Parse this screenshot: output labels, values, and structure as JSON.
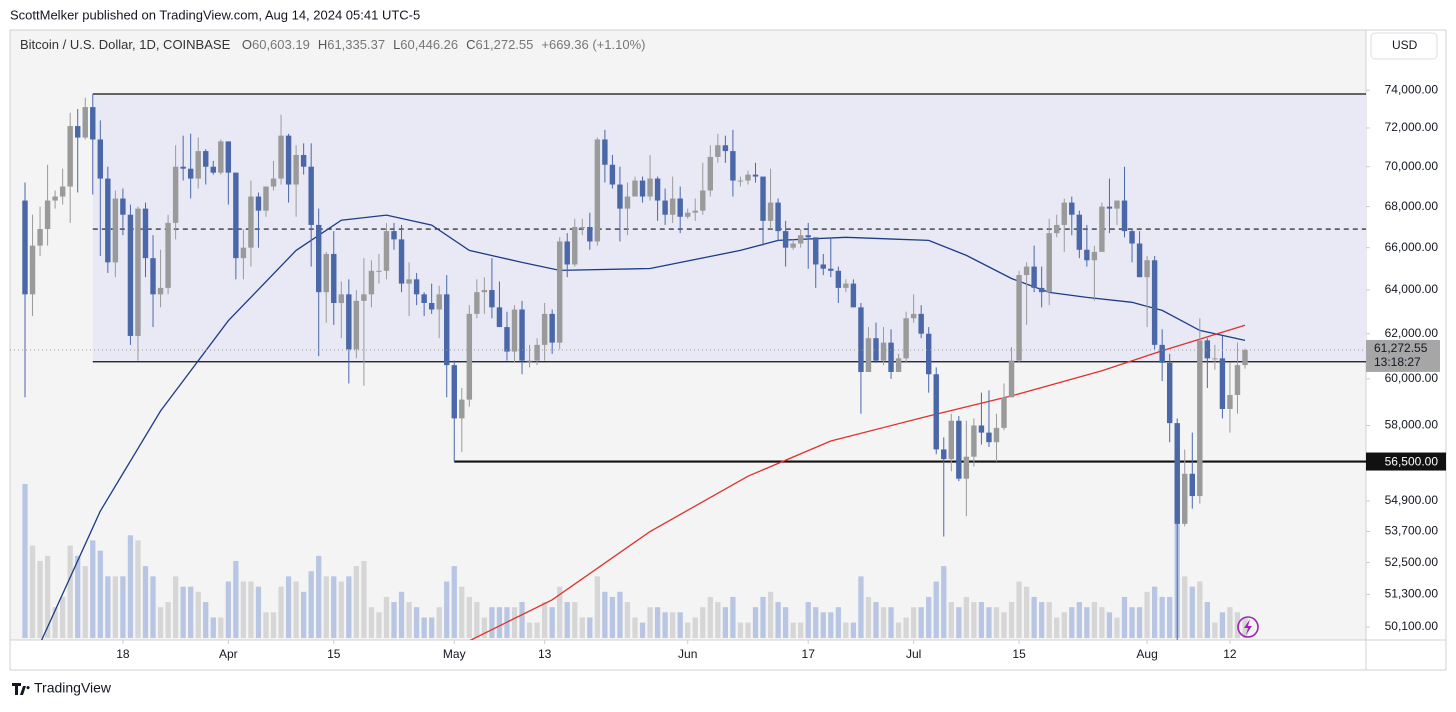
{
  "chart_data": {
    "type": "candlestick",
    "byline": "ScottMelker published on TradingView.com, Aug 14, 2024 05:41 UTC-5",
    "symbol": "Bitcoin / U.S. Dollar, 1D, COINBASE",
    "ohlc_legend": [
      {
        "key": "O",
        "label": "60,603.19"
      },
      {
        "key": "H",
        "label": "61,335.37"
      },
      {
        "key": "L",
        "label": "60,446.26"
      },
      {
        "key": "C",
        "label": "61,272.55"
      }
    ],
    "change_label": "+669.36 (+1.10%)",
    "currency": "USD",
    "last_price_label": "61,272.55",
    "countdown": "13:18:27",
    "footer": "TradingView",
    "log_scale": true,
    "ylim": [
      49700,
      77200
    ],
    "yticks": [
      {
        "value": 74000,
        "label": "74,000.00"
      },
      {
        "value": 72000,
        "label": "72,000.00"
      },
      {
        "value": 70000,
        "label": "70,000.00"
      },
      {
        "value": 68000,
        "label": "68,000.00"
      },
      {
        "value": 66000,
        "label": "66,000.00"
      },
      {
        "value": 64000,
        "label": "64,000.00"
      },
      {
        "value": 62000,
        "label": "62,000.00"
      },
      {
        "value": 60000,
        "label": "60,000.00"
      },
      {
        "value": 58000,
        "label": "58,000.00"
      },
      {
        "value": 54900,
        "label": "54,900.00"
      },
      {
        "value": 53700,
        "label": "53,700.00"
      },
      {
        "value": 52500,
        "label": "52,500.00"
      },
      {
        "value": 51300,
        "label": "51,300.00"
      },
      {
        "value": 50100,
        "label": "50,100.00"
      }
    ],
    "xticks": [
      {
        "value": "Mar 18",
        "label": "18"
      },
      {
        "value": "Apr 1",
        "label": "Apr"
      },
      {
        "value": "Apr 15",
        "label": "15"
      },
      {
        "value": "May 1",
        "label": "May"
      },
      {
        "value": "May 13",
        "label": "13"
      },
      {
        "value": "Jun 1",
        "label": "Jun"
      },
      {
        "value": "Jun 17",
        "label": "17"
      },
      {
        "value": "Jul 1",
        "label": "Jul"
      },
      {
        "value": "Jul 15",
        "label": "15"
      },
      {
        "value": "Aug 1",
        "label": "Aug"
      },
      {
        "value": "Aug 12",
        "label": "12"
      }
    ],
    "colors": {
      "up": "#9a9a9a",
      "down": "#4a68a8",
      "volume_up": "#d6d6d6",
      "volume_down": "#b8c6e3"
    },
    "x": [
      "Mar 5",
      "Mar 6",
      "Mar 7",
      "Mar 8",
      "Mar 9",
      "Mar 10",
      "Mar 11",
      "Mar 12",
      "Mar 13",
      "Mar 14",
      "Mar 15",
      "Mar 16",
      "Mar 17",
      "Mar 18",
      "Mar 19",
      "Mar 20",
      "Mar 21",
      "Mar 22",
      "Mar 23",
      "Mar 24",
      "Mar 25",
      "Mar 26",
      "Mar 27",
      "Mar 28",
      "Mar 29",
      "Mar 30",
      "Mar 31",
      "Apr 1",
      "Apr 2",
      "Apr 3",
      "Apr 4",
      "Apr 5",
      "Apr 6",
      "Apr 7",
      "Apr 8",
      "Apr 9",
      "Apr 10",
      "Apr 11",
      "Apr 12",
      "Apr 13",
      "Apr 14",
      "Apr 15",
      "Apr 16",
      "Apr 17",
      "Apr 18",
      "Apr 19",
      "Apr 20",
      "Apr 21",
      "Apr 22",
      "Apr 23",
      "Apr 24",
      "Apr 25",
      "Apr 26",
      "Apr 27",
      "Apr 28",
      "Apr 29",
      "Apr 30",
      "May 1",
      "May 2",
      "May 3",
      "May 4",
      "May 5",
      "May 6",
      "May 7",
      "May 8",
      "May 9",
      "May 10",
      "May 11",
      "May 12",
      "May 13",
      "May 14",
      "May 15",
      "May 16",
      "May 17",
      "May 18",
      "May 19",
      "May 20",
      "May 21",
      "May 22",
      "May 23",
      "May 24",
      "May 25",
      "May 26",
      "May 27",
      "May 28",
      "May 29",
      "May 30",
      "May 31",
      "Jun 1",
      "Jun 2",
      "Jun 3",
      "Jun 4",
      "Jun 5",
      "Jun 6",
      "Jun 7",
      "Jun 8",
      "Jun 9",
      "Jun 10",
      "Jun 11",
      "Jun 12",
      "Jun 13",
      "Jun 14",
      "Jun 15",
      "Jun 16",
      "Jun 17",
      "Jun 18",
      "Jun 19",
      "Jun 20",
      "Jun 21",
      "Jun 22",
      "Jun 23",
      "Jun 24",
      "Jun 25",
      "Jun 26",
      "Jun 27",
      "Jun 28",
      "Jun 29",
      "Jun 30",
      "Jul 1",
      "Jul 2",
      "Jul 3",
      "Jul 4",
      "Jul 5",
      "Jul 6",
      "Jul 7",
      "Jul 8",
      "Jul 9",
      "Jul 10",
      "Jul 11",
      "Jul 12",
      "Jul 13",
      "Jul 14",
      "Jul 15",
      "Jul 16",
      "Jul 17",
      "Jul 18",
      "Jul 19",
      "Jul 20",
      "Jul 21",
      "Jul 22",
      "Jul 23",
      "Jul 24",
      "Jul 25",
      "Jul 26",
      "Jul 27",
      "Jul 28",
      "Jul 29",
      "Jul 30",
      "Jul 31",
      "Aug 1",
      "Aug 2",
      "Aug 3",
      "Aug 4",
      "Aug 5",
      "Aug 6",
      "Aug 7",
      "Aug 8",
      "Aug 9",
      "Aug 10",
      "Aug 11",
      "Aug 12",
      "Aug 13",
      "Aug 14"
    ],
    "open": [
      68300,
      63800,
      66100,
      66900,
      68300,
      68500,
      69000,
      72100,
      71500,
      73100,
      71400,
      69400,
      65300,
      68400,
      67600,
      61900,
      67900,
      65500,
      63800,
      64100,
      67200,
      70000,
      69900,
      69400,
      70800,
      70000,
      69700,
      71300,
      69700,
      65500,
      66000,
      68500,
      67800,
      69000,
      69400,
      71600,
      69100,
      70600,
      70000,
      67100,
      63900,
      65700,
      63400,
      63800,
      61300,
      63500,
      63800,
      64900,
      64900,
      66800,
      66400,
      64300,
      64500,
      63800,
      63400,
      63100,
      63800,
      60600,
      58300,
      59100,
      62900,
      63900,
      64000,
      63200,
      62300,
      61200,
      63100,
      60800,
      60800,
      61500,
      62900,
      61600,
      66300,
      65200,
      67000,
      67000,
      66300,
      71400,
      70100,
      69100,
      67900,
      68500,
      69300,
      68500,
      69400,
      68300,
      67600,
      68400,
      67500,
      67700,
      67800,
      68800,
      70500,
      71100,
      70800,
      69300,
      69300,
      69600,
      69500,
      67300,
      68200,
      66800,
      66000,
      66200,
      66600,
      66500,
      65200,
      65000,
      64900,
      64100,
      64300,
      63200,
      60300,
      61800,
      60800,
      61600,
      60300,
      60900,
      62700,
      62900,
      62000,
      60200,
      57000,
      56600,
      58200,
      55800,
      56700,
      58000,
      57700,
      57300,
      57900,
      59200,
      60800,
      64700,
      65100,
      64100,
      63900,
      66700,
      67100,
      68200,
      67600,
      65900,
      65400,
      65800,
      68000,
      67900,
      68300,
      66800,
      66200,
      64600,
      65400,
      61500,
      60700,
      58100,
      54000,
      56000,
      55100,
      61700,
      60900,
      60900,
      58700,
      59300,
      60603.19
    ],
    "high": [
      69200,
      67600,
      68000,
      70100,
      68800,
      69900,
      72800,
      73000,
      73600,
      73800,
      72400,
      70000,
      68800,
      68900,
      68100,
      68000,
      68200,
      66600,
      65900,
      67600,
      71100,
      71600,
      71700,
      71500,
      70900,
      70300,
      71400,
      71300,
      69700,
      66900,
      69300,
      68700,
      69000,
      70300,
      72700,
      71700,
      71100,
      71200,
      71200,
      67900,
      65800,
      66800,
      64400,
      64500,
      64000,
      65500,
      65400,
      65700,
      67200,
      67200,
      67100,
      65300,
      64800,
      63900,
      64300,
      64200,
      64700,
      60800,
      59600,
      63300,
      64500,
      64600,
      65500,
      64400,
      63000,
      63300,
      63500,
      61500,
      61800,
      63400,
      63100,
      66500,
      66700,
      67400,
      67400,
      67700,
      71500,
      71900,
      70600,
      70000,
      69200,
      69500,
      69500,
      70600,
      69500,
      68900,
      69500,
      69000,
      67900,
      68400,
      70200,
      71100,
      71700,
      71600,
      71900,
      69500,
      69800,
      70200,
      69500,
      69900,
      68400,
      67300,
      66400,
      66900,
      67200,
      66500,
      65700,
      66500,
      65100,
      64500,
      64500,
      63400,
      62300,
      62500,
      62300,
      62200,
      61100,
      63000,
      63800,
      63300,
      62300,
      60500,
      57500,
      58500,
      58400,
      58200,
      58300,
      59400,
      59500,
      58500,
      59800,
      61400,
      64900,
      65300,
      66100,
      65100,
      67400,
      67600,
      68400,
      68500,
      67800,
      67100,
      66100,
      68200,
      69400,
      68300,
      70000,
      66900,
      66800,
      65600,
      65600,
      62200,
      61100,
      58300,
      57000,
      57700,
      62700,
      61800,
      61500,
      61900,
      60700,
      61600,
      61335.37
    ],
    "low": [
      59200,
      62800,
      65600,
      66100,
      67900,
      68100,
      67200,
      68700,
      71400,
      68600,
      65600,
      64800,
      64600,
      66600,
      61500,
      60800,
      64600,
      62300,
      63200,
      63800,
      66400,
      69300,
      68400,
      68900,
      69100,
      69600,
      69600,
      68100,
      64500,
      64500,
      65100,
      66000,
      67500,
      68800,
      69100,
      68200,
      67500,
      69600,
      65100,
      61000,
      62500,
      62400,
      61800,
      59800,
      60900,
      59700,
      63200,
      64300,
      64500,
      65900,
      63900,
      62800,
      63300,
      62800,
      62900,
      61800,
      59200,
      56500,
      56900,
      58800,
      62700,
      62900,
      62700,
      62300,
      60800,
      60700,
      60200,
      60500,
      60600,
      60800,
      61100,
      61300,
      64600,
      65100,
      66600,
      65900,
      66100,
      69200,
      68900,
      66300,
      66600,
      68500,
      68200,
      68300,
      67300,
      67100,
      67200,
      66700,
      67400,
      67300,
      67600,
      68500,
      70200,
      70200,
      68500,
      69000,
      69100,
      69200,
      66100,
      66900,
      66300,
      65100,
      65900,
      66000,
      65000,
      64100,
      64700,
      64600,
      63400,
      63900,
      63200,
      58500,
      60300,
      60700,
      60600,
      60000,
      60300,
      60700,
      62500,
      61800,
      59400,
      56800,
      53500,
      56100,
      55700,
      54300,
      56300,
      57200,
      57100,
      56500,
      57800,
      59200,
      60700,
      62400,
      63900,
      63200,
      63300,
      66500,
      65800,
      66600,
      65500,
      65100,
      63500,
      65800,
      66700,
      67100,
      66500,
      65300,
      64600,
      62300,
      61300,
      59900,
      57300,
      49000,
      53900,
      54600,
      54800,
      59600,
      60400,
      58300,
      57700,
      58500,
      60446.26
    ],
    "close": [
      63800,
      66100,
      66900,
      68300,
      68500,
      69000,
      72100,
      71500,
      73100,
      71400,
      69400,
      65300,
      68400,
      67600,
      61900,
      67900,
      65500,
      63800,
      64100,
      67200,
      70000,
      69900,
      69400,
      70800,
      70000,
      69700,
      71300,
      69700,
      65500,
      66000,
      68500,
      67800,
      69000,
      69400,
      71600,
      69100,
      70600,
      70000,
      67100,
      63900,
      65700,
      63400,
      63800,
      61300,
      63500,
      63800,
      64900,
      64900,
      66800,
      66400,
      64300,
      64500,
      63800,
      63400,
      63100,
      63800,
      60600,
      58300,
      59100,
      62900,
      63900,
      64000,
      63200,
      62300,
      61200,
      63100,
      60800,
      60800,
      61500,
      62900,
      61600,
      66300,
      65200,
      67000,
      67000,
      66300,
      71400,
      70100,
      69100,
      67900,
      68500,
      69300,
      68500,
      69400,
      68300,
      67600,
      68400,
      67500,
      67700,
      67800,
      68800,
      70500,
      71100,
      70800,
      69300,
      69300,
      69600,
      69500,
      67300,
      68200,
      66800,
      66000,
      66200,
      66600,
      66500,
      65200,
      65000,
      64900,
      64100,
      64300,
      63200,
      60300,
      61800,
      60800,
      61600,
      60300,
      60900,
      62700,
      62900,
      62000,
      60200,
      57000,
      56600,
      58200,
      55800,
      56700,
      58000,
      57700,
      57300,
      57900,
      59200,
      60800,
      64700,
      65100,
      64100,
      63900,
      66700,
      67100,
      68200,
      67600,
      65900,
      65400,
      65800,
      68000,
      67900,
      68300,
      66800,
      66200,
      64600,
      65400,
      61500,
      60700,
      58100,
      54000,
      56000,
      55100,
      61700,
      60900,
      60900,
      58700,
      59300,
      60600,
      61272.55
    ],
    "volume": [
      150,
      90,
      75,
      80,
      30,
      40,
      90,
      80,
      70,
      95,
      85,
      60,
      60,
      60,
      100,
      95,
      70,
      60,
      30,
      35,
      60,
      50,
      50,
      45,
      35,
      20,
      20,
      55,
      75,
      55,
      55,
      50,
      25,
      25,
      50,
      60,
      55,
      45,
      65,
      80,
      60,
      60,
      55,
      60,
      70,
      75,
      30,
      25,
      40,
      35,
      45,
      35,
      30,
      20,
      20,
      30,
      55,
      70,
      50,
      40,
      35,
      20,
      30,
      30,
      30,
      30,
      35,
      15,
      15,
      35,
      30,
      50,
      35,
      35,
      20,
      20,
      60,
      45,
      40,
      45,
      35,
      20,
      15,
      30,
      30,
      25,
      25,
      25,
      15,
      20,
      30,
      40,
      35,
      30,
      40,
      15,
      15,
      30,
      40,
      45,
      35,
      30,
      15,
      15,
      35,
      30,
      25,
      25,
      30,
      15,
      15,
      60,
      40,
      35,
      30,
      30,
      15,
      20,
      30,
      30,
      40,
      55,
      70,
      35,
      30,
      40,
      35,
      35,
      30,
      30,
      25,
      35,
      55,
      50,
      40,
      35,
      35,
      20,
      25,
      30,
      35,
      30,
      35,
      30,
      25,
      20,
      40,
      30,
      30,
      45,
      50,
      40,
      40,
      185,
      60,
      50,
      55,
      35,
      15,
      25,
      30,
      25,
      20
    ],
    "moving_averages": [
      {
        "color": "#1c3d86",
        "x": [
          "Mar 7",
          "Mar 15",
          "Mar 23",
          "Apr 1",
          "Apr 10",
          "Apr 16",
          "Apr 22",
          "Apr 28",
          "May 3",
          "May 10",
          "May 15",
          "May 27",
          "Jun 8",
          "Jun 13",
          "Jun 22",
          "Jul 3",
          "Jul 8",
          "Jul 14",
          "Jul 19",
          "Jul 24",
          "Jul 30",
          "Aug 3",
          "Aug 8",
          "Aug 14"
        ],
        "values": [
          49500,
          54500,
          58620,
          62590,
          65870,
          67330,
          67580,
          67090,
          65870,
          65300,
          64920,
          65010,
          65870,
          66350,
          66500,
          66350,
          65630,
          64540,
          63890,
          63660,
          63430,
          63060,
          62150,
          61700
        ]
      },
      {
        "color": "#e0312b",
        "x": [
          "May 3",
          "May 14",
          "May 27",
          "Jun 9",
          "Jun 20",
          "Jul 3",
          "Jul 14",
          "Jul 26",
          "Aug 3",
          "Aug 14"
        ],
        "values": [
          49600,
          51100,
          53700,
          55900,
          57350,
          58400,
          59260,
          60350,
          61240,
          62380
        ]
      }
    ],
    "range_box": {
      "from": "Mar 14",
      "top": 73800,
      "bottom": 60750,
      "color": "#e9e9f6"
    },
    "levels": [
      {
        "value": 66900,
        "from": "Mar 14",
        "dashed": true
      },
      {
        "value": 56500,
        "from": "May 1",
        "label": "56,500.00"
      }
    ]
  }
}
